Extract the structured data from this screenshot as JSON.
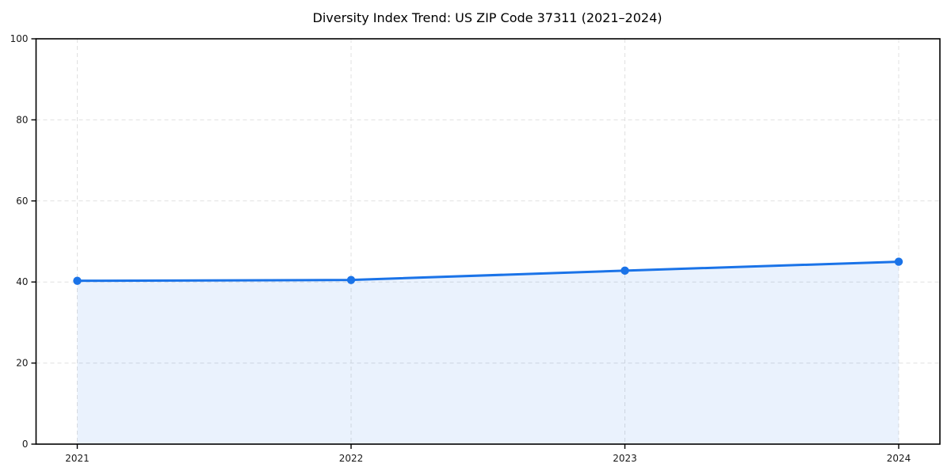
{
  "figure": {
    "background": "#ffffff"
  },
  "chart_data": {
    "type": "area",
    "title": "Diversity Index Trend: US ZIP Code 37311 (2021–2024)",
    "x": [
      2021,
      2022,
      2023,
      2024
    ],
    "xticklabels": [
      "2021",
      "2022",
      "2023",
      "2024"
    ],
    "series": [
      {
        "name": "Diversity Index",
        "values": [
          40.3,
          40.5,
          42.8,
          45.0
        ]
      }
    ],
    "xlabel": "",
    "ylabel": "",
    "ylim": [
      0,
      100
    ],
    "yticks": [
      0,
      20,
      40,
      60,
      80,
      100
    ],
    "grid": true,
    "grid_style": "dashed",
    "legend": "none",
    "marker": "circle",
    "colors": {
      "line": "#1a73e8",
      "marker": "#1a73e8",
      "fill": "#1a73e8",
      "fill_opacity": 0.09,
      "grid": "#e0e0e0",
      "spine": "#000000",
      "tick_text": "#1a1a1a",
      "title_text": "#000000",
      "background": "#ffffff"
    }
  }
}
